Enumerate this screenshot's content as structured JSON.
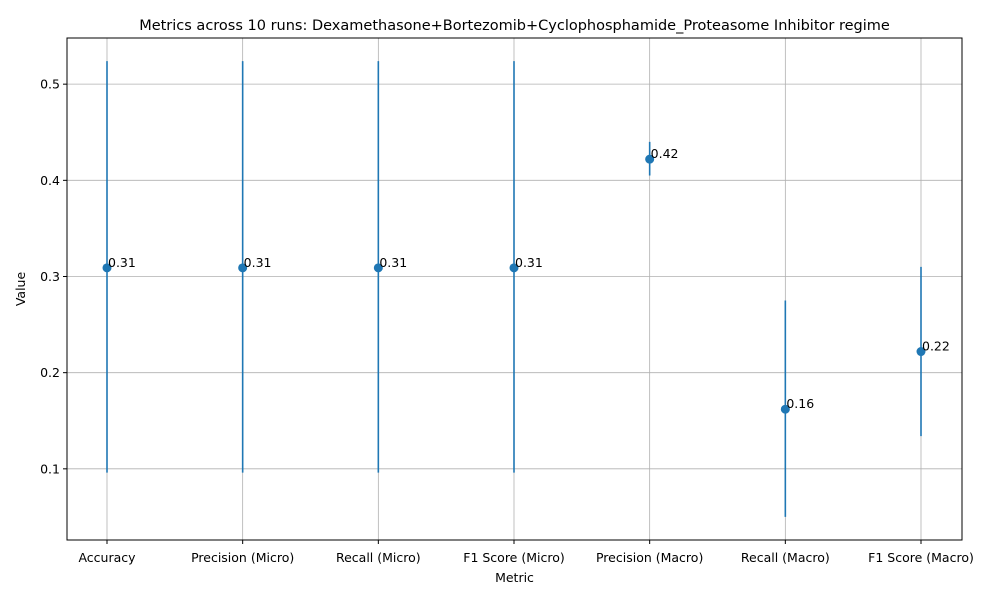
{
  "chart_data": {
    "type": "scatter",
    "title": "Metrics across 10 runs: Dexamethasone+Bortezomib+Cyclophosphamide_Proteasome Inhibitor regime",
    "xlabel": "Metric",
    "ylabel": "Value",
    "categories": [
      "Accuracy",
      "Precision (Micro)",
      "Recall (Micro)",
      "F1 Score (Micro)",
      "Precision (Macro)",
      "Recall (Macro)",
      "F1 Score (Macro)"
    ],
    "values": [
      0.309,
      0.309,
      0.309,
      0.309,
      0.422,
      0.162,
      0.222
    ],
    "error_low": [
      0.096,
      0.096,
      0.096,
      0.096,
      0.405,
      0.05,
      0.134
    ],
    "error_high": [
      0.524,
      0.524,
      0.524,
      0.524,
      0.44,
      0.275,
      0.31
    ],
    "data_labels": [
      "0.31",
      "0.31",
      "0.31",
      "0.31",
      "0.42",
      "0.16",
      "0.22"
    ],
    "yticks": [
      0.1,
      0.2,
      0.3,
      0.4,
      0.5
    ],
    "ytick_labels": [
      "0.1",
      "0.2",
      "0.3",
      "0.4",
      "0.5"
    ],
    "ylim": [
      0.026,
      0.548
    ],
    "grid": true,
    "color": "#1f77b4"
  }
}
